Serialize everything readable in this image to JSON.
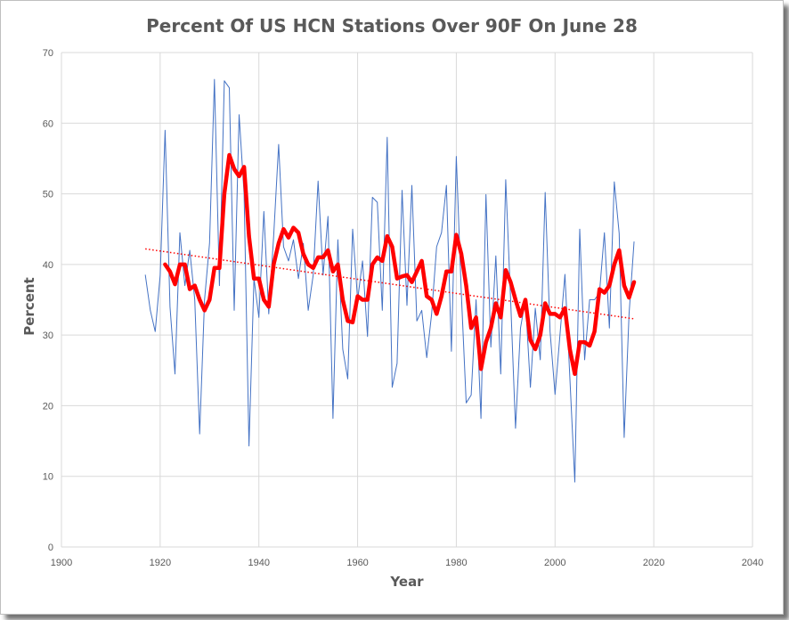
{
  "chart_data": {
    "type": "line",
    "title": "Percent Of US HCN Stations Over 90F On June 28",
    "xlabel": "Year",
    "ylabel": "Percent",
    "xlim": [
      1900,
      2040
    ],
    "ylim": [
      0,
      70
    ],
    "xticks": [
      1900,
      1920,
      1940,
      1960,
      1980,
      2000,
      2020,
      2040
    ],
    "yticks": [
      0,
      10,
      20,
      30,
      40,
      50,
      60,
      70
    ],
    "grid": true,
    "legend": "none",
    "series": [
      {
        "style": "thin line",
        "color": "#4472C4",
        "x": [
          1917,
          1918,
          1919,
          1920,
          1921,
          1922,
          1923,
          1924,
          1925,
          1926,
          1927,
          1928,
          1929,
          1930,
          1931,
          1932,
          1933,
          1934,
          1935,
          1936,
          1937,
          1938,
          1939,
          1940,
          1941,
          1942,
          1943,
          1944,
          1945,
          1946,
          1947,
          1948,
          1949,
          1950,
          1951,
          1952,
          1953,
          1954,
          1955,
          1956,
          1957,
          1958,
          1959,
          1960,
          1961,
          1962,
          1963,
          1964,
          1965,
          1966,
          1967,
          1968,
          1969,
          1970,
          1971,
          1972,
          1973,
          1974,
          1975,
          1976,
          1977,
          1978,
          1979,
          1980,
          1981,
          1982,
          1983,
          1984,
          1985,
          1986,
          1987,
          1988,
          1989,
          1990,
          1991,
          1992,
          1993,
          1994,
          1995,
          1996,
          1997,
          1998,
          1999,
          2000,
          2001,
          2002,
          2003,
          2004,
          2005,
          2006,
          2007,
          2008,
          2009,
          2010,
          2011,
          2012,
          2013,
          2014,
          2015,
          2016
        ],
        "y": [
          38.5,
          33.5,
          30.5,
          38.5,
          59.0,
          34.0,
          24.5,
          44.5,
          37.0,
          42.0,
          35.0,
          16.0,
          35.0,
          43.0,
          66.2,
          37.0,
          66.0,
          65.0,
          33.5,
          61.2,
          50.0,
          14.3,
          38.0,
          32.5,
          47.5,
          33.0,
          44.0,
          57.0,
          42.5,
          40.5,
          43.5,
          38.0,
          43.0,
          33.5,
          38.5,
          51.8,
          38.5,
          46.8,
          18.2,
          43.5,
          28.0,
          23.8,
          45.0,
          35.0,
          40.5,
          29.8,
          49.5,
          48.8,
          33.5,
          58.0,
          22.6,
          26.0,
          50.5,
          34.2,
          51.2,
          32.0,
          33.5,
          26.8,
          33.0,
          42.5,
          44.5,
          51.2,
          27.7,
          55.3,
          36.0,
          20.4,
          21.5,
          35.0,
          18.2,
          49.9,
          28.3,
          41.2,
          24.5,
          52.0,
          35.0,
          16.8,
          31.0,
          35.0,
          22.6,
          33.8,
          26.5,
          50.2,
          30.5,
          21.6,
          30.0,
          38.6,
          24.0,
          9.2,
          45.0,
          26.5,
          35.0,
          35.0,
          36.0,
          44.5,
          31.0,
          51.7,
          44.4,
          15.5,
          33.0,
          43.2
        ]
      },
      {
        "style": "thick line",
        "color": "#FF0000",
        "x": [
          1921,
          1922,
          1923,
          1924,
          1925,
          1926,
          1927,
          1928,
          1929,
          1930,
          1931,
          1932,
          1933,
          1934,
          1935,
          1936,
          1937,
          1938,
          1939,
          1940,
          1941,
          1942,
          1943,
          1944,
          1945,
          1946,
          1947,
          1948,
          1949,
          1950,
          1951,
          1952,
          1953,
          1954,
          1955,
          1956,
          1957,
          1958,
          1959,
          1960,
          1961,
          1962,
          1963,
          1964,
          1965,
          1966,
          1967,
          1968,
          1969,
          1970,
          1971,
          1972,
          1973,
          1974,
          1975,
          1976,
          1977,
          1978,
          1979,
          1980,
          1981,
          1982,
          1983,
          1984,
          1985,
          1986,
          1987,
          1988,
          1989,
          1990,
          1991,
          1992,
          1993,
          1994,
          1995,
          1996,
          1997,
          1998,
          1999,
          2000,
          2001,
          2002,
          2003,
          2004,
          2005,
          2006,
          2007,
          2008,
          2009,
          2010,
          2011,
          2012,
          2013,
          2014,
          2015,
          2016
        ],
        "y": [
          40.0,
          39.0,
          37.2,
          40.0,
          40.0,
          36.5,
          37.0,
          35.0,
          33.5,
          35.0,
          39.5,
          39.5,
          50.0,
          55.5,
          53.5,
          52.5,
          53.8,
          44.0,
          38.0,
          38.0,
          35.0,
          34.0,
          40.0,
          43.0,
          45.0,
          43.8,
          45.2,
          44.5,
          41.5,
          40.0,
          39.5,
          41.0,
          41.0,
          42.0,
          39.0,
          40.0,
          35.0,
          32.0,
          31.8,
          35.5,
          35.0,
          35.0,
          40.0,
          41.0,
          40.5,
          44.0,
          42.5,
          38.0,
          38.3,
          38.5,
          37.5,
          39.0,
          40.5,
          35.5,
          35.0,
          33.0,
          35.5,
          39.0,
          39.0,
          44.2,
          41.5,
          37.0,
          31.0,
          32.5,
          25.2,
          29.0,
          31.0,
          34.5,
          32.5,
          39.2,
          37.5,
          35.0,
          32.7,
          35.0,
          29.3,
          28.0,
          30.0,
          34.5,
          33.0,
          33.0,
          32.5,
          33.8,
          28.0,
          24.5,
          29.0,
          29.0,
          28.5,
          30.5,
          36.5,
          36.0,
          37.0,
          40.0,
          42.0,
          37.0,
          35.3,
          37.5
        ]
      },
      {
        "style": "dotted trendline",
        "color": "#FF0000",
        "x": [
          1917,
          2016
        ],
        "y": [
          42.2,
          32.3
        ]
      }
    ]
  }
}
